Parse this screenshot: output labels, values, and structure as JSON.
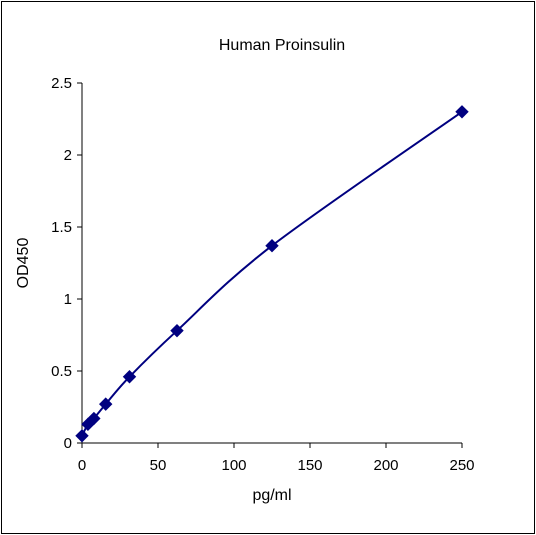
{
  "chart_data": {
    "type": "scatter",
    "title": "Human Proinsulin",
    "xlabel": "pg/ml",
    "ylabel": "OD450",
    "xlim": [
      0,
      250
    ],
    "ylim": [
      0,
      2.5
    ],
    "xticks": [
      "0",
      "50",
      "100",
      "150",
      "200",
      "250"
    ],
    "yticks": [
      "0",
      "0.5",
      "1",
      "1.5",
      "2",
      "2.5"
    ],
    "grid": false,
    "series": [
      {
        "x": [
          0,
          3.9,
          7.8,
          15.6,
          31.25,
          62.5,
          125,
          250
        ],
        "y": [
          0.05,
          0.13,
          0.17,
          0.27,
          0.46,
          0.78,
          1.37,
          2.3
        ],
        "fit_line": true
      }
    ],
    "colors": {
      "series": "#000080",
      "axis": "#000000"
    }
  }
}
